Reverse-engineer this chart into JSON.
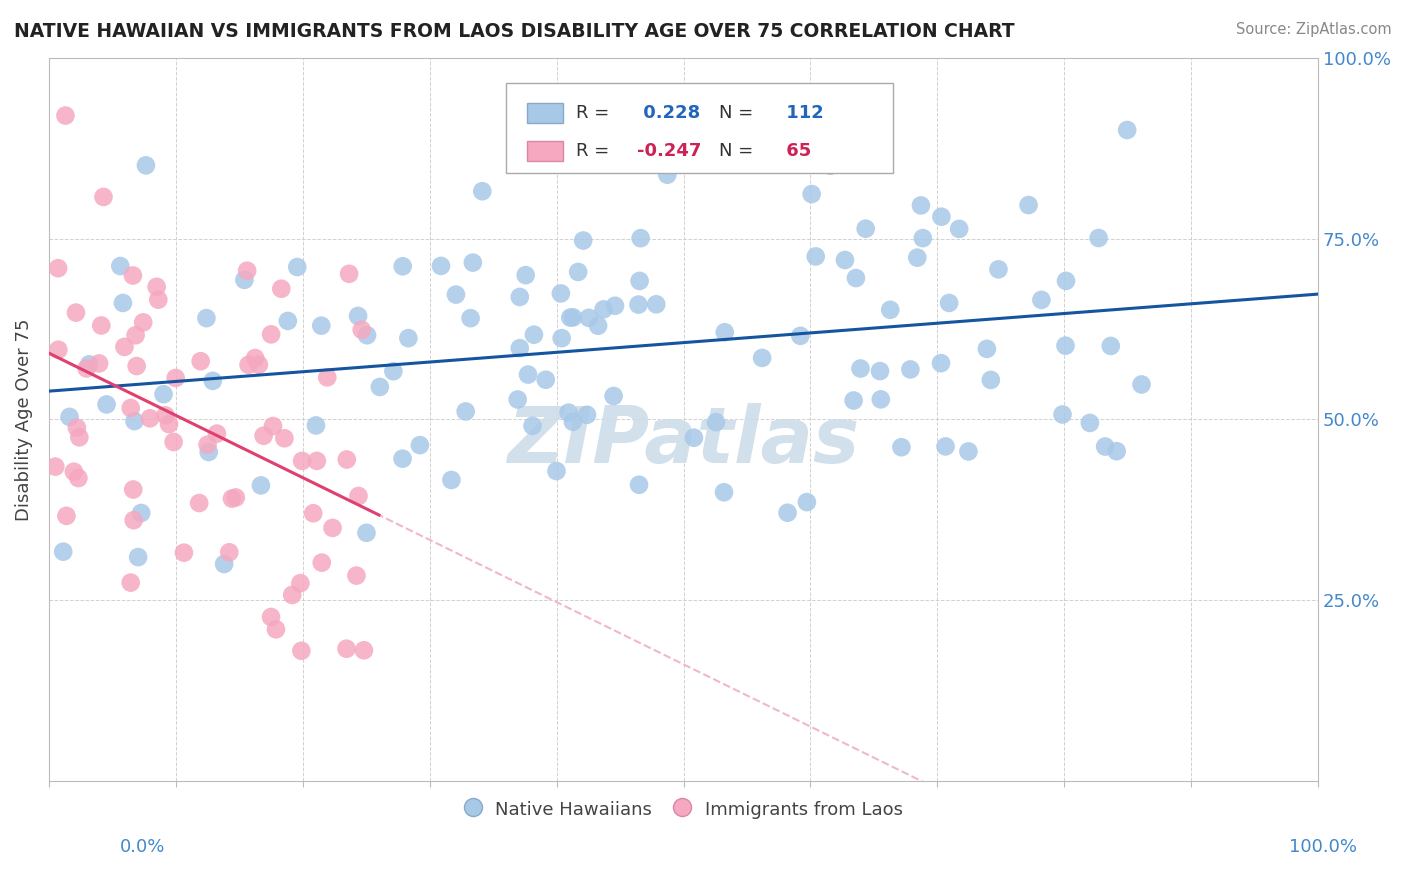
{
  "title": "NATIVE HAWAIIAN VS IMMIGRANTS FROM LAOS DISABILITY AGE OVER 75 CORRELATION CHART",
  "source": "Source: ZipAtlas.com",
  "ylabel": "Disability Age Over 75",
  "xlim": [
    0.0,
    1.0
  ],
  "ylim": [
    0.0,
    1.0
  ],
  "ytick_labels": [
    "25.0%",
    "50.0%",
    "75.0%",
    "100.0%"
  ],
  "ytick_values": [
    0.25,
    0.5,
    0.75,
    1.0
  ],
  "blue_R": 0.228,
  "blue_N": 112,
  "pink_R": -0.247,
  "pink_N": 65,
  "blue_color": "#a8c8e8",
  "pink_color": "#f5a8c0",
  "blue_line_color": "#1555a0",
  "pink_line_color": "#e04070",
  "pink_dashed_color": "#f0b8c8",
  "background_color": "#ffffff",
  "grid_color": "#cccccc",
  "title_color": "#222222",
  "source_color": "#888888",
  "watermark_color": "#ccdde8",
  "right_axis_color": "#4488cc",
  "bottom_axis_color": "#4488cc"
}
